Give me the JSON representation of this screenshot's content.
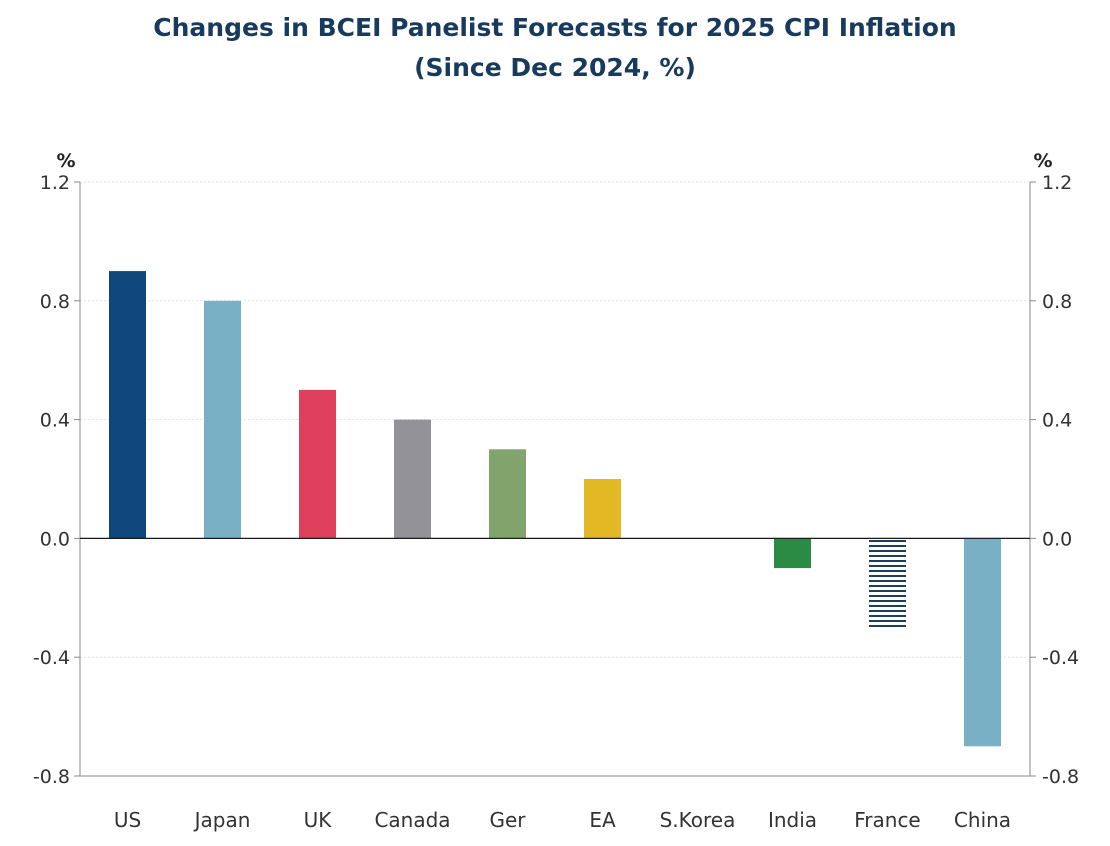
{
  "chart_data": {
    "type": "bar",
    "title": "Changes in BCEI Panelist Forecasts for 2025 CPI Inflation",
    "subtitle": "(Since Dec 2024, %)",
    "y_unit_left": "%",
    "y_unit_right": "%",
    "ylim": [
      -0.8,
      1.2
    ],
    "yticks": [
      1.2,
      0.8,
      0.4,
      0.0,
      -0.4,
      -0.8
    ],
    "ytick_labels": [
      "1.2",
      "0.8",
      "0.4",
      "0.0",
      "-0.4",
      "-0.8"
    ],
    "grid": true,
    "categories": [
      "US",
      "Japan",
      "UK",
      "Canada",
      "Ger",
      "EA",
      "S.Korea",
      "India",
      "France",
      "China"
    ],
    "values": [
      0.9,
      0.8,
      0.5,
      0.4,
      0.3,
      0.2,
      0.0,
      -0.1,
      -0.3,
      -0.7
    ],
    "colors": [
      "#0f477c",
      "#79b0c5",
      "#df405b",
      "#929298",
      "#80a46b",
      "#e2b924",
      "#ffffff",
      "#2a8c44",
      "#1e3f5c",
      "#79b0c5"
    ],
    "patterns": [
      "solid",
      "solid",
      "solid",
      "solid",
      "solid",
      "solid",
      "solid",
      "solid",
      "horizontal-stripes",
      "solid"
    ]
  }
}
